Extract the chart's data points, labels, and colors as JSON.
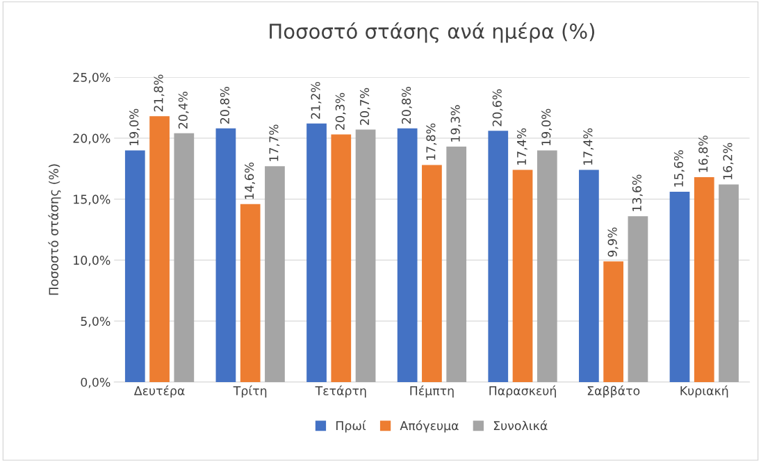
{
  "chart_data": {
    "type": "bar",
    "title": "Ποσοστό στάσης ανά ημέρα (%)",
    "ylabel": "Ποσοστό στάσης (%)",
    "categories": [
      "Δευτέρα",
      "Τρίτη",
      "Τετάρτη",
      "Πέμπτη",
      "Παρασκευή",
      "Σαββάτο",
      "Κυριακή"
    ],
    "series": [
      {
        "name": "Πρωί",
        "color": "#4472c4",
        "values": [
          19.0,
          20.8,
          21.2,
          20.8,
          20.6,
          17.4,
          15.6
        ],
        "value_labels": [
          "19,0%",
          "20,8%",
          "21,2%",
          "20,8%",
          "20,6%",
          "17,4%",
          "15,6%"
        ]
      },
      {
        "name": "Απόγευμα",
        "color": "#ed7d31",
        "values": [
          21.8,
          14.6,
          20.3,
          17.8,
          17.4,
          9.9,
          16.8
        ],
        "value_labels": [
          "21,8%",
          "14,6%",
          "20,3%",
          "17,8%",
          "17,4%",
          "9,9%",
          "16,8%"
        ]
      },
      {
        "name": "Συνολικά",
        "color": "#a5a5a5",
        "values": [
          20.4,
          17.7,
          20.7,
          19.3,
          19.0,
          13.6,
          16.2
        ],
        "value_labels": [
          "20,4%",
          "17,7%",
          "20,7%",
          "19,3%",
          "19,0%",
          "13,6%",
          "16,2%"
        ]
      }
    ],
    "ylim": [
      0,
      25
    ],
    "yticks": [
      {
        "value": 0,
        "label": "0,0%"
      },
      {
        "value": 5,
        "label": "5,0%"
      },
      {
        "value": 10,
        "label": "10,0%"
      },
      {
        "value": 15,
        "label": "15,0%"
      },
      {
        "value": 20,
        "label": "20,0%"
      },
      {
        "value": 25,
        "label": "25,0%"
      }
    ],
    "grid": "y",
    "legend": "bottom"
  }
}
